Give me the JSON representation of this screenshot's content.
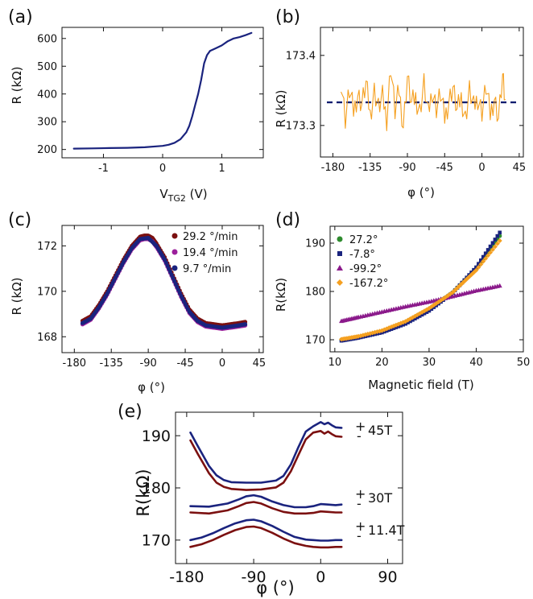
{
  "chart_data": [
    {
      "panel": "(a)",
      "type": "line",
      "xlabel": "V",
      "xlabel_sub": "TG2",
      "xlabel_unit": " (V)",
      "ylabel": "R (kΩ)",
      "xlim": [
        -1.7,
        1.7
      ],
      "ylim": [
        170,
        640
      ],
      "xticks": [
        -1,
        0,
        1
      ],
      "xtick_labels": [
        "-1",
        "0",
        "1"
      ],
      "yticks": [
        200,
        300,
        400,
        500,
        600
      ],
      "ytick_labels": [
        "200",
        "300",
        "400",
        "500",
        "600"
      ],
      "series": [
        {
          "name": "R",
          "color": "#1a237e",
          "x": [
            -1.5,
            -1.2,
            -0.9,
            -0.6,
            -0.3,
            0.0,
            0.1,
            0.2,
            0.3,
            0.4,
            0.45,
            0.5,
            0.55,
            0.6,
            0.65,
            0.7,
            0.75,
            0.8,
            0.9,
            1.0,
            1.1,
            1.2,
            1.3,
            1.4,
            1.5
          ],
          "y": [
            203,
            204,
            205,
            206,
            208,
            213,
            217,
            224,
            237,
            262,
            285,
            320,
            360,
            400,
            450,
            510,
            540,
            555,
            565,
            575,
            590,
            600,
            605,
            612,
            620
          ]
        }
      ]
    },
    {
      "panel": "(b)",
      "type": "line",
      "xlabel": "φ (°)",
      "ylabel": "R (kΩ)",
      "xlim": [
        -195,
        50
      ],
      "ylim": [
        173.255,
        173.44
      ],
      "xticks": [
        -180,
        -135,
        -90,
        -45,
        0,
        45
      ],
      "xtick_labels": [
        "-180",
        "-135",
        "-90",
        "-45",
        "0",
        "45"
      ],
      "yticks": [
        173.3,
        173.4
      ],
      "ytick_labels": [
        "173.3",
        "173.4"
      ],
      "mean_line": 173.333,
      "series": [
        {
          "name": "R(φ)",
          "color": "#f5a020",
          "x": [
            -170,
            -165,
            -160,
            -155,
            -150,
            -145,
            -140,
            -135,
            -130,
            -125,
            -120,
            -115,
            -110,
            -105,
            -100,
            -95,
            -90,
            -85,
            -80,
            -75,
            -70,
            -65,
            -60,
            -55,
            -50,
            -45,
            -40,
            -35,
            -30,
            -25,
            -20,
            -15,
            -10,
            -5,
            0,
            5,
            10,
            15,
            20,
            25,
            28
          ],
          "y": [
            173.365,
            173.31,
            173.35,
            173.32,
            173.345,
            173.33,
            173.36,
            173.315,
            173.35,
            173.325,
            173.34,
            173.31,
            173.385,
            173.32,
            173.35,
            173.3,
            173.37,
            173.33,
            173.34,
            173.32,
            173.36,
            173.315,
            173.35,
            173.325,
            173.345,
            173.31,
            173.335,
            173.355,
            173.32,
            173.34,
            173.31,
            173.35,
            173.325,
            173.34,
            173.32,
            173.355,
            173.315,
            173.34,
            173.31,
            173.37,
            173.33
          ]
        }
      ]
    },
    {
      "panel": "(c)",
      "type": "scatter",
      "xlabel": "φ (°)",
      "ylabel": "R (kΩ)",
      "xlim": [
        -195,
        50
      ],
      "ylim": [
        167.3,
        172.9
      ],
      "xticks": [
        -180,
        -135,
        -90,
        -45,
        0,
        45
      ],
      "xtick_labels": [
        "-180",
        "-135",
        "-90",
        "-45",
        "0",
        "45"
      ],
      "yticks": [
        168,
        170,
        172
      ],
      "ytick_labels": [
        "168",
        "170",
        "172"
      ],
      "series": [
        {
          "name": "29.2 °/min",
          "color": "#7b1010",
          "x": [
            -170,
            -160,
            -150,
            -140,
            -130,
            -120,
            -110,
            -100,
            -95,
            -90,
            -85,
            -80,
            -70,
            -60,
            -50,
            -40,
            -30,
            -20,
            -10,
            0,
            10,
            20,
            28
          ],
          "y": [
            168.7,
            168.9,
            169.4,
            170.0,
            170.7,
            171.4,
            172.0,
            172.4,
            172.45,
            172.45,
            172.35,
            172.1,
            171.5,
            170.7,
            169.9,
            169.2,
            168.8,
            168.6,
            168.55,
            168.5,
            168.55,
            168.6,
            168.65
          ]
        },
        {
          "name": "19.4 °/min",
          "color": "#9b1f9b",
          "x": [
            -170,
            -160,
            -150,
            -140,
            -130,
            -120,
            -110,
            -100,
            -95,
            -90,
            -85,
            -80,
            -70,
            -60,
            -50,
            -40,
            -30,
            -20,
            -10,
            0,
            10,
            20,
            28
          ],
          "y": [
            168.55,
            168.75,
            169.25,
            169.85,
            170.55,
            171.25,
            171.85,
            172.25,
            172.3,
            172.3,
            172.2,
            171.95,
            171.35,
            170.55,
            169.75,
            169.05,
            168.65,
            168.45,
            168.4,
            168.35,
            168.4,
            168.45,
            168.5
          ]
        },
        {
          "name": "9.7 °/min",
          "color": "#1a237e",
          "x": [
            -170,
            -160,
            -150,
            -140,
            -130,
            -120,
            -110,
            -100,
            -90,
            -80,
            -70,
            -60,
            -50,
            -40,
            -30,
            -20,
            -10,
            0,
            10,
            20,
            28
          ],
          "y": [
            168.6,
            168.8,
            169.3,
            169.9,
            170.6,
            171.3,
            171.9,
            172.3,
            172.35,
            172.0,
            171.4,
            170.6,
            169.8,
            169.1,
            168.7,
            168.5,
            168.45,
            168.4,
            168.45,
            168.5,
            168.55
          ]
        }
      ]
    },
    {
      "panel": "(d)",
      "type": "scatter",
      "xlabel": "Magnetic field (T)",
      "ylabel": "R(kΩ)",
      "xlim": [
        9,
        50
      ],
      "ylim": [
        167.5,
        193.5
      ],
      "xticks": [
        10,
        20,
        30,
        40,
        50
      ],
      "xtick_labels": [
        "10",
        "20",
        "30",
        "40",
        "50"
      ],
      "yticks": [
        170,
        180,
        190
      ],
      "ytick_labels": [
        "170",
        "180",
        "190"
      ],
      "series": [
        {
          "name": "27.2°",
          "color": "#2e8b2e",
          "marker": "circle",
          "x": [
            11.4,
            15,
            20,
            25,
            30,
            35,
            40,
            45
          ],
          "y": [
            170.0,
            170.6,
            171.8,
            173.7,
            176.4,
            179.8,
            184.8,
            191.5
          ]
        },
        {
          "name": "-7.8°",
          "color": "#1a237e",
          "marker": "square",
          "x": [
            11.4,
            15,
            20,
            25,
            30,
            35,
            40,
            45
          ],
          "y": [
            169.8,
            170.4,
            171.5,
            173.3,
            176.0,
            179.7,
            185.0,
            192.2
          ]
        },
        {
          "name": "-99.2°",
          "color": "#8b1a8b",
          "marker": "triangle",
          "x": [
            11.4,
            15,
            20,
            25,
            30,
            35,
            40,
            45
          ],
          "y": [
            173.9,
            174.7,
            175.8,
            176.9,
            177.9,
            179.0,
            180.2,
            181.2
          ]
        },
        {
          "name": "-167.2°",
          "color": "#f5a020",
          "marker": "diamond",
          "x": [
            11.4,
            15,
            20,
            25,
            30,
            35,
            40,
            45
          ],
          "y": [
            170.1,
            170.7,
            171.9,
            173.8,
            176.5,
            179.8,
            184.4,
            190.5
          ]
        }
      ]
    },
    {
      "panel": "(e)",
      "type": "line",
      "xlabel": "φ (°)",
      "ylabel": "R(kΩ)",
      "xlim": [
        -195,
        110
      ],
      "ylim": [
        165.5,
        194.5
      ],
      "xticks": [
        -180,
        -90,
        0,
        90
      ],
      "xtick_labels": [
        "-180",
        "-90",
        "0",
        "90"
      ],
      "yticks": [
        170,
        180,
        190
      ],
      "ytick_labels": [
        "170",
        "180",
        "190"
      ],
      "legend": [
        {
          "plus": "+",
          "minus": "-",
          "label": "45T"
        },
        {
          "plus": "+",
          "minus": "-",
          "label": "30T"
        },
        {
          "plus": "+",
          "minus": "-",
          "label": "11.4T"
        }
      ],
      "series": [
        {
          "name": "45T +",
          "color": "#1a237e",
          "x": [
            -175,
            -165,
            -150,
            -140,
            -130,
            -120,
            -100,
            -80,
            -60,
            -50,
            -40,
            -30,
            -20,
            -10,
            0,
            5,
            10,
            15,
            20,
            28
          ],
          "y": [
            190.6,
            188.0,
            184.2,
            182.4,
            181.5,
            181.1,
            181.0,
            181.0,
            181.4,
            182.3,
            184.5,
            187.8,
            190.8,
            191.8,
            192.6,
            192.2,
            192.5,
            192.0,
            191.6,
            191.5
          ]
        },
        {
          "name": "45T -",
          "color": "#7b1010",
          "x": [
            -175,
            -165,
            -150,
            -140,
            -130,
            -120,
            -100,
            -80,
            -60,
            -50,
            -40,
            -30,
            -20,
            -10,
            0,
            5,
            10,
            15,
            20,
            28
          ],
          "y": [
            189.1,
            186.5,
            182.8,
            181.0,
            180.2,
            179.8,
            179.6,
            179.7,
            180.1,
            181.0,
            183.2,
            186.3,
            189.3,
            190.6,
            190.9,
            190.4,
            190.8,
            190.3,
            189.9,
            189.8
          ]
        },
        {
          "name": "30T +",
          "color": "#1a237e",
          "x": [
            -175,
            -150,
            -125,
            -110,
            -100,
            -90,
            -80,
            -65,
            -50,
            -35,
            -20,
            -10,
            0,
            10,
            20,
            28
          ],
          "y": [
            176.5,
            176.4,
            177.0,
            177.8,
            178.4,
            178.6,
            178.3,
            177.4,
            176.7,
            176.3,
            176.3,
            176.5,
            176.9,
            176.8,
            176.7,
            176.8
          ]
        },
        {
          "name": "30T -",
          "color": "#7b1010",
          "x": [
            -175,
            -150,
            -125,
            -110,
            -100,
            -90,
            -80,
            -65,
            -50,
            -35,
            -20,
            -10,
            0,
            10,
            20,
            28
          ],
          "y": [
            175.3,
            175.1,
            175.7,
            176.5,
            177.1,
            177.3,
            177.0,
            176.1,
            175.4,
            175.1,
            175.1,
            175.2,
            175.5,
            175.4,
            175.3,
            175.3
          ]
        },
        {
          "name": "11.4T +",
          "color": "#1a237e",
          "x": [
            -175,
            -160,
            -145,
            -130,
            -115,
            -100,
            -90,
            -80,
            -65,
            -50,
            -35,
            -20,
            -10,
            0,
            10,
            20,
            28
          ],
          "y": [
            170.0,
            170.5,
            171.3,
            172.3,
            173.2,
            173.8,
            173.9,
            173.6,
            172.7,
            171.6,
            170.6,
            170.1,
            170.0,
            169.9,
            169.9,
            170.0,
            170.0
          ]
        },
        {
          "name": "11.4T -",
          "color": "#7b1010",
          "x": [
            -175,
            -160,
            -145,
            -130,
            -115,
            -100,
            -90,
            -80,
            -65,
            -50,
            -35,
            -20,
            -10,
            0,
            10,
            20,
            28
          ],
          "y": [
            168.7,
            169.2,
            170.0,
            171.0,
            171.9,
            172.5,
            172.6,
            172.3,
            171.4,
            170.3,
            169.4,
            168.9,
            168.7,
            168.6,
            168.6,
            168.7,
            168.7
          ]
        }
      ]
    }
  ]
}
